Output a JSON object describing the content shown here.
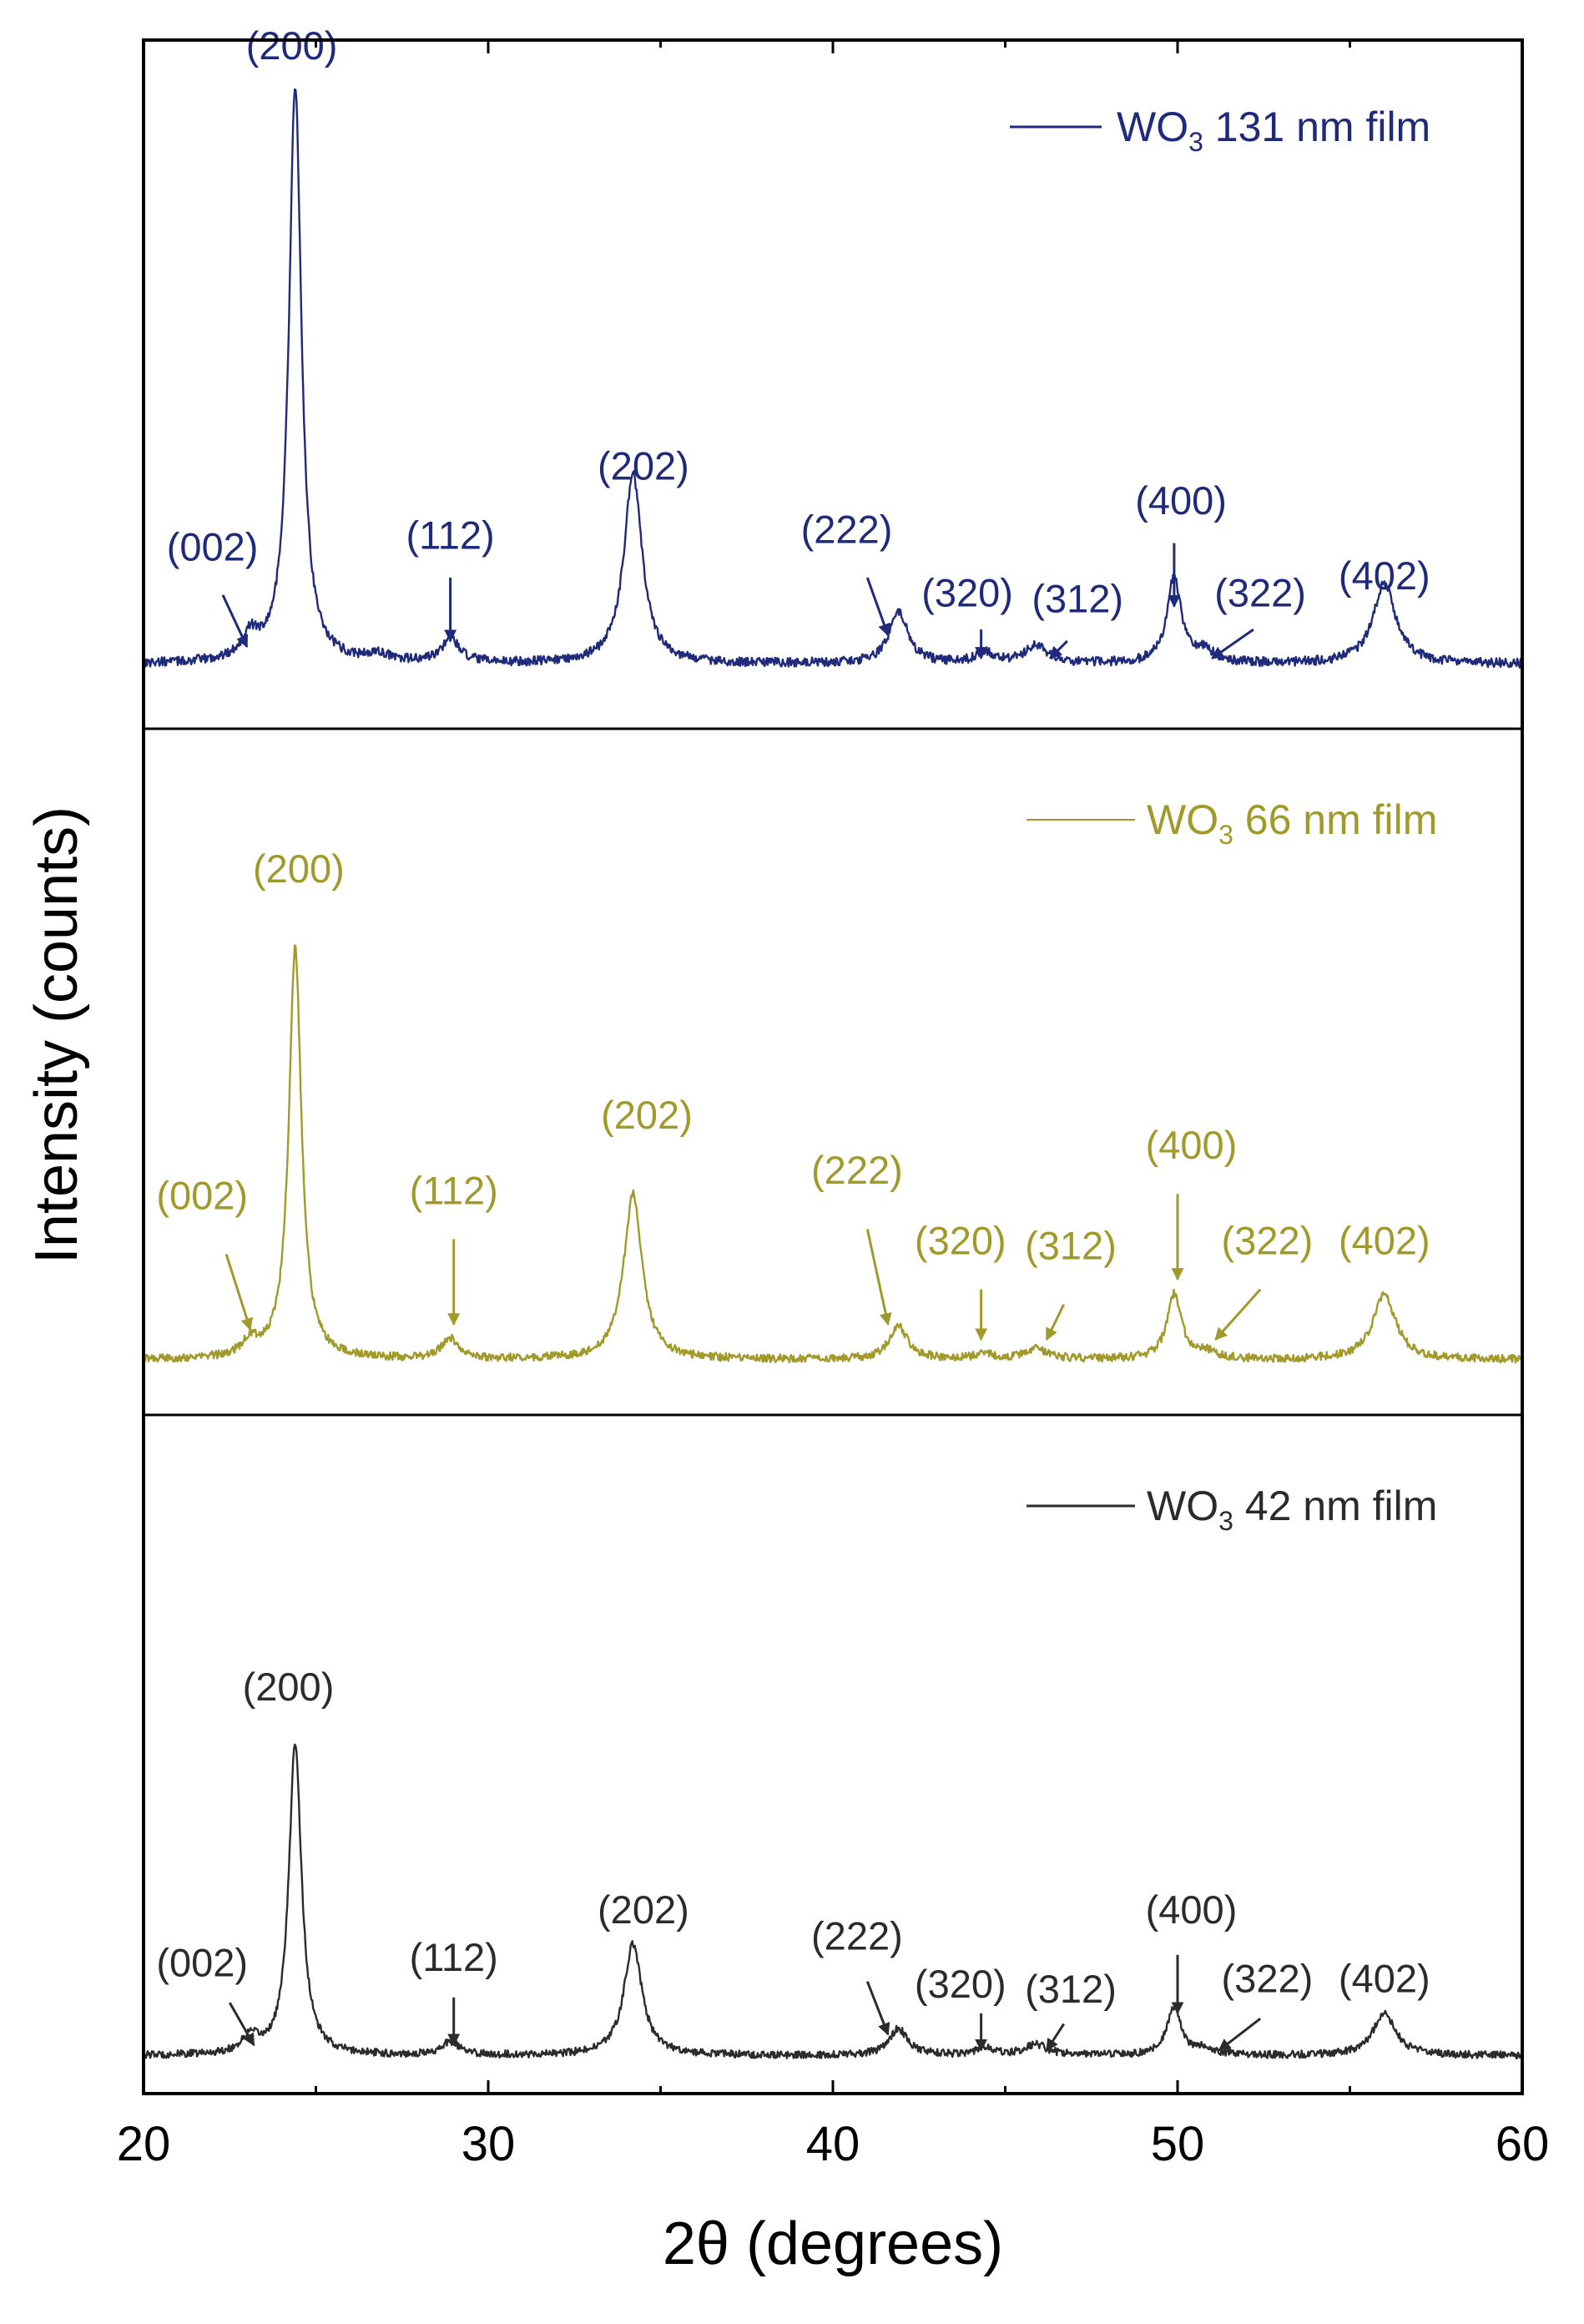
{
  "chart_data": {
    "type": "line",
    "layout": "three stacked panels sharing the x axis",
    "xlabel": "2θ (degrees)",
    "ylabel": "Intensity (counts)",
    "xlim": [
      20,
      60
    ],
    "xticks": [
      20,
      30,
      40,
      50,
      60
    ],
    "x_tick_labels": [
      "20",
      "30",
      "40",
      "50",
      "60"
    ],
    "y_tick_labels": "none",
    "grid": false,
    "panels": [
      {
        "id": "131",
        "legend": {
          "prefix": "WO",
          "subscript": "3",
          "suffix": " 131 nm film",
          "position": "top-right"
        },
        "color": "#1f2a7a",
        "series": {
          "name": "WO3 131 nm film",
          "baseline": 0.05,
          "noise": 0.008,
          "peaks": [
            {
              "x": 23.1,
              "h": 0.04,
              "w": 0.3
            },
            {
              "x": 24.4,
              "h": 1.0,
              "w": 0.22
            },
            {
              "x": 26.8,
              "h": 0.012,
              "w": 0.4
            },
            {
              "x": 28.9,
              "h": 0.042,
              "w": 0.3
            },
            {
              "x": 34.2,
              "h": 0.33,
              "w": 0.32
            },
            {
              "x": 41.9,
              "h": 0.09,
              "w": 0.33
            },
            {
              "x": 44.4,
              "h": 0.02,
              "w": 0.3
            },
            {
              "x": 45.9,
              "h": 0.03,
              "w": 0.4
            },
            {
              "x": 49.9,
              "h": 0.15,
              "w": 0.25
            },
            {
              "x": 50.8,
              "h": 0.02,
              "w": 0.3
            },
            {
              "x": 56.0,
              "h": 0.14,
              "w": 0.4
            }
          ]
        },
        "peak_labels": [
          {
            "text": "(002)",
            "x": 22.0,
            "y": 0.23,
            "arrow_from": [
              22.3,
              0.17
            ],
            "arrow_to": [
              23.0,
              0.08
            ]
          },
          {
            "text": "(200)",
            "x": 24.3,
            "y": 1.1
          },
          {
            "text": "(112)",
            "x": 28.9,
            "y": 0.25,
            "arrow_from": [
              28.9,
              0.2
            ],
            "arrow_to": [
              28.9,
              0.09
            ]
          },
          {
            "text": "(202)",
            "x": 34.5,
            "y": 0.37
          },
          {
            "text": "(222)",
            "x": 40.4,
            "y": 0.26,
            "arrow_from": [
              41.0,
              0.2
            ],
            "arrow_to": [
              41.6,
              0.1
            ]
          },
          {
            "text": "(320)",
            "x": 43.9,
            "y": 0.15,
            "arrow_from": [
              44.3,
              0.11
            ],
            "arrow_to": [
              44.3,
              0.06
            ]
          },
          {
            "text": "(312)",
            "x": 47.1,
            "y": 0.14,
            "arrow_from": [
              46.8,
              0.09
            ],
            "arrow_to": [
              46.3,
              0.06
            ]
          },
          {
            "text": "(400)",
            "x": 50.1,
            "y": 0.31,
            "arrow_from": [
              49.9,
              0.26
            ],
            "arrow_to": [
              49.9,
              0.15
            ]
          },
          {
            "text": "(322)",
            "x": 52.4,
            "y": 0.15,
            "arrow_from": [
              52.2,
              0.11
            ],
            "arrow_to": [
              51.0,
              0.06
            ]
          },
          {
            "text": "(402)",
            "x": 56.0,
            "y": 0.18
          }
        ]
      },
      {
        "id": "66",
        "legend": {
          "prefix": "WO",
          "subscript": "3",
          "suffix": " 66 nm film",
          "position": "top-right"
        },
        "color": "#a19a2b",
        "series": {
          "name": "WO3 66 nm film",
          "baseline": 0.06,
          "noise": 0.008,
          "peaks": [
            {
              "x": 23.1,
              "h": 0.03,
              "w": 0.3
            },
            {
              "x": 24.4,
              "h": 0.82,
              "w": 0.22
            },
            {
              "x": 28.9,
              "h": 0.04,
              "w": 0.3
            },
            {
              "x": 34.2,
              "h": 0.33,
              "w": 0.32
            },
            {
              "x": 41.9,
              "h": 0.065,
              "w": 0.33
            },
            {
              "x": 44.4,
              "h": 0.012,
              "w": 0.3
            },
            {
              "x": 45.9,
              "h": 0.02,
              "w": 0.4
            },
            {
              "x": 49.9,
              "h": 0.13,
              "w": 0.25
            },
            {
              "x": 50.8,
              "h": 0.015,
              "w": 0.3
            },
            {
              "x": 56.0,
              "h": 0.13,
              "w": 0.4
            }
          ]
        },
        "peak_labels": [
          {
            "text": "(002)",
            "x": 21.7,
            "y": 0.36,
            "arrow_from": [
              22.4,
              0.27
            ],
            "arrow_to": [
              23.1,
              0.12
            ]
          },
          {
            "text": "(200)",
            "x": 24.5,
            "y": 1.01
          },
          {
            "text": "(112)",
            "x": 29.0,
            "y": 0.37,
            "arrow_from": [
              29.0,
              0.3
            ],
            "arrow_to": [
              29.0,
              0.13
            ]
          },
          {
            "text": "(202)",
            "x": 34.6,
            "y": 0.52
          },
          {
            "text": "(222)",
            "x": 40.7,
            "y": 0.41,
            "arrow_from": [
              41.0,
              0.32
            ],
            "arrow_to": [
              41.6,
              0.13
            ]
          },
          {
            "text": "(320)",
            "x": 43.7,
            "y": 0.27,
            "arrow_from": [
              44.3,
              0.2
            ],
            "arrow_to": [
              44.3,
              0.1
            ]
          },
          {
            "text": "(312)",
            "x": 46.9,
            "y": 0.26,
            "arrow_from": [
              46.7,
              0.17
            ],
            "arrow_to": [
              46.2,
              0.1
            ]
          },
          {
            "text": "(400)",
            "x": 50.4,
            "y": 0.46,
            "arrow_from": [
              50.0,
              0.39
            ],
            "arrow_to": [
              50.0,
              0.22
            ]
          },
          {
            "text": "(322)",
            "x": 52.6,
            "y": 0.27,
            "arrow_from": [
              52.4,
              0.2
            ],
            "arrow_to": [
              51.1,
              0.1
            ]
          },
          {
            "text": "(402)",
            "x": 56.0,
            "y": 0.27
          }
        ]
      },
      {
        "id": "42",
        "legend": {
          "prefix": "WO",
          "subscript": "3",
          "suffix": " 42 nm film",
          "position": "top-right"
        },
        "color": "#2b2b2b",
        "series": {
          "name": "WO3 42 nm film",
          "baseline": 0.04,
          "noise": 0.007,
          "peaks": [
            {
              "x": 23.1,
              "h": 0.03,
              "w": 0.3
            },
            {
              "x": 24.4,
              "h": 0.59,
              "w": 0.22
            },
            {
              "x": 28.9,
              "h": 0.025,
              "w": 0.3
            },
            {
              "x": 34.2,
              "h": 0.21,
              "w": 0.32
            },
            {
              "x": 41.9,
              "h": 0.05,
              "w": 0.33
            },
            {
              "x": 44.4,
              "h": 0.015,
              "w": 0.3
            },
            {
              "x": 45.9,
              "h": 0.02,
              "w": 0.4
            },
            {
              "x": 49.9,
              "h": 0.09,
              "w": 0.25
            },
            {
              "x": 50.8,
              "h": 0.012,
              "w": 0.3
            },
            {
              "x": 56.0,
              "h": 0.08,
              "w": 0.4
            }
          ]
        },
        "peak_labels": [
          {
            "text": "(002)",
            "x": 21.7,
            "y": 0.19,
            "arrow_from": [
              22.5,
              0.14
            ],
            "arrow_to": [
              23.2,
              0.06
            ]
          },
          {
            "text": "(200)",
            "x": 24.2,
            "y": 0.71
          },
          {
            "text": "(112)",
            "x": 29.0,
            "y": 0.2,
            "arrow_from": [
              29.0,
              0.15
            ],
            "arrow_to": [
              29.0,
              0.06
            ]
          },
          {
            "text": "(202)",
            "x": 34.5,
            "y": 0.29
          },
          {
            "text": "(222)",
            "x": 40.7,
            "y": 0.24,
            "arrow_from": [
              41.0,
              0.18
            ],
            "arrow_to": [
              41.6,
              0.08
            ]
          },
          {
            "text": "(320)",
            "x": 43.7,
            "y": 0.15,
            "arrow_from": [
              44.3,
              0.12
            ],
            "arrow_to": [
              44.3,
              0.05
            ]
          },
          {
            "text": "(312)",
            "x": 46.9,
            "y": 0.14,
            "arrow_from": [
              46.7,
              0.1
            ],
            "arrow_to": [
              46.2,
              0.05
            ]
          },
          {
            "text": "(400)",
            "x": 50.4,
            "y": 0.29,
            "arrow_from": [
              50.0,
              0.23
            ],
            "arrow_to": [
              50.0,
              0.12
            ]
          },
          {
            "text": "(322)",
            "x": 52.6,
            "y": 0.16,
            "arrow_from": [
              52.4,
              0.11
            ],
            "arrow_to": [
              51.2,
              0.05
            ]
          },
          {
            "text": "(402)",
            "x": 56.0,
            "y": 0.16
          }
        ]
      }
    ]
  }
}
